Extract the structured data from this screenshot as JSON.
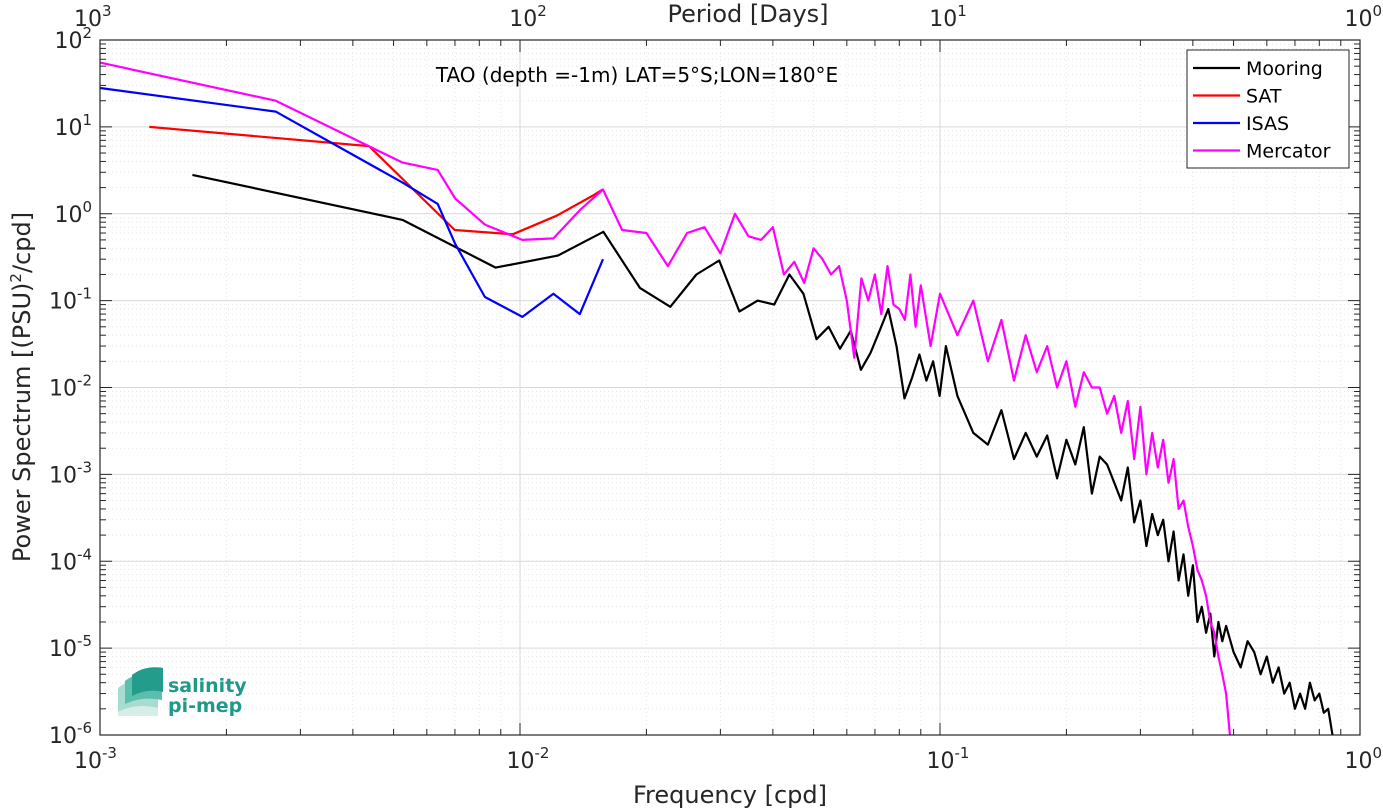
{
  "chart_data": {
    "type": "line",
    "title": "TAO (depth =-1m) LAT=5°S;LON=180°E",
    "xlabel": "Frequency [cpd]",
    "top_xlabel": "Period [Days]",
    "ylabel": "Power Spectrum [(PSU)^2/cpd]",
    "ylabel_parts": {
      "main": "Power Spectrum [(PSU)",
      "exp": "2",
      "tail": "/cpd]"
    },
    "x_scale": "log",
    "y_scale": "log",
    "xlim": [
      0.001,
      1
    ],
    "ylim": [
      1e-06,
      100
    ],
    "grid": true,
    "minor_grid": true,
    "legend_position": "top-right",
    "x_ticks": [
      {
        "base": "10",
        "exp": "-3"
      },
      {
        "base": "10",
        "exp": "-2"
      },
      {
        "base": "10",
        "exp": "-1"
      },
      {
        "base": "10",
        "exp": "0"
      }
    ],
    "top_ticks": [
      {
        "base": "10",
        "exp": "3"
      },
      {
        "base": "10",
        "exp": "2"
      },
      {
        "base": "10",
        "exp": "1"
      },
      {
        "base": "10",
        "exp": "0"
      }
    ],
    "y_ticks": [
      {
        "base": "10",
        "exp": "2"
      },
      {
        "base": "10",
        "exp": "1"
      },
      {
        "base": "10",
        "exp": "0"
      },
      {
        "base": "10",
        "exp": "-1"
      },
      {
        "base": "10",
        "exp": "-2"
      },
      {
        "base": "10",
        "exp": "-3"
      },
      {
        "base": "10",
        "exp": "-4"
      },
      {
        "base": "10",
        "exp": "-5"
      },
      {
        "base": "10",
        "exp": "-6"
      }
    ],
    "series": [
      {
        "name": "Mooring",
        "color": "#000000",
        "x": [
          0.00166,
          0.00525,
          0.00875,
          0.0123,
          0.0158,
          0.0193,
          0.0228,
          0.0263,
          0.0298,
          0.0333,
          0.0368,
          0.0403,
          0.0438,
          0.0473,
          0.0508,
          0.0543,
          0.0578,
          0.0613,
          0.0648,
          0.0683,
          0.0718,
          0.0753,
          0.0788,
          0.0823,
          0.0858,
          0.0893,
          0.0928,
          0.0963,
          0.0998,
          0.1033,
          0.11,
          0.12,
          0.13,
          0.14,
          0.15,
          0.16,
          0.17,
          0.18,
          0.19,
          0.2,
          0.21,
          0.22,
          0.23,
          0.24,
          0.25,
          0.26,
          0.27,
          0.28,
          0.29,
          0.3,
          0.31,
          0.32,
          0.33,
          0.34,
          0.35,
          0.36,
          0.37,
          0.38,
          0.39,
          0.4,
          0.41,
          0.42,
          0.43,
          0.44,
          0.45,
          0.46,
          0.47,
          0.48,
          0.5,
          0.52,
          0.54,
          0.56,
          0.58,
          0.6,
          0.62,
          0.64,
          0.66,
          0.68,
          0.7,
          0.72,
          0.74,
          0.76,
          0.78,
          0.8,
          0.82,
          0.84,
          0.86
        ],
        "y": [
          2.8,
          0.85,
          0.24,
          0.33,
          0.62,
          0.14,
          0.085,
          0.2,
          0.29,
          0.075,
          0.1,
          0.09,
          0.2,
          0.12,
          0.036,
          0.05,
          0.028,
          0.045,
          0.016,
          0.025,
          0.045,
          0.08,
          0.03,
          0.0075,
          0.013,
          0.024,
          0.012,
          0.02,
          0.008,
          0.03,
          0.008,
          0.003,
          0.0022,
          0.0055,
          0.0015,
          0.003,
          0.0016,
          0.0028,
          0.0009,
          0.0025,
          0.0013,
          0.0035,
          0.0006,
          0.0016,
          0.0013,
          0.0008,
          0.0005,
          0.0012,
          0.00028,
          0.0005,
          0.00015,
          0.00035,
          0.0002,
          0.0003,
          0.0001,
          0.00022,
          6e-05,
          0.00012,
          4e-05,
          9e-05,
          2e-05,
          3e-05,
          1.5e-05,
          2.5e-05,
          8e-06,
          2e-05,
          1.2e-05,
          1.8e-05,
          9e-06,
          6e-06,
          1.2e-05,
          9e-06,
          5e-06,
          8e-06,
          4e-06,
          6e-06,
          3e-06,
          4e-06,
          2e-06,
          3e-06,
          2e-06,
          4e-06,
          2.5e-06,
          3e-06,
          1.8e-06,
          2e-06,
          1e-06
        ]
      },
      {
        "name": "SAT",
        "color": "#ff0000",
        "x": [
          0.00131,
          0.00437,
          0.00699,
          0.00961,
          0.01223,
          0.01485,
          0.01573
        ],
        "y": [
          10,
          6,
          0.65,
          0.58,
          0.95,
          1.6,
          1.9
        ]
      },
      {
        "name": "ISAS",
        "color": "#0000ff",
        "x": [
          0.001,
          0.00262,
          0.00524,
          0.00637,
          0.00701,
          0.00825,
          0.01013,
          0.01201,
          0.01388,
          0.01576
        ],
        "y": [
          28,
          15,
          2.3,
          1.3,
          0.45,
          0.11,
          0.065,
          0.12,
          0.07,
          0.3
        ]
      },
      {
        "name": "Mercator",
        "color": "#ff00ff",
        "x": [
          0.001,
          0.00262,
          0.00524,
          0.00637,
          0.00701,
          0.00825,
          0.01013,
          0.01201,
          0.01388,
          0.01576,
          0.0175,
          0.02,
          0.0225,
          0.025,
          0.0275,
          0.03,
          0.0325,
          0.035,
          0.0375,
          0.04,
          0.0425,
          0.045,
          0.0475,
          0.05,
          0.0525,
          0.055,
          0.0575,
          0.06,
          0.0625,
          0.065,
          0.0675,
          0.07,
          0.0725,
          0.075,
          0.0775,
          0.08,
          0.0825,
          0.085,
          0.0875,
          0.09,
          0.095,
          0.1,
          0.11,
          0.12,
          0.13,
          0.14,
          0.15,
          0.16,
          0.17,
          0.18,
          0.19,
          0.2,
          0.21,
          0.22,
          0.23,
          0.24,
          0.25,
          0.26,
          0.27,
          0.28,
          0.29,
          0.3,
          0.31,
          0.32,
          0.33,
          0.34,
          0.35,
          0.36,
          0.37,
          0.38,
          0.39,
          0.4,
          0.41,
          0.42,
          0.43,
          0.44,
          0.45,
          0.46,
          0.47,
          0.48,
          0.49
        ],
        "y": [
          55,
          20,
          3.9,
          3.2,
          1.5,
          0.75,
          0.5,
          0.52,
          1.1,
          1.9,
          0.65,
          0.6,
          0.25,
          0.6,
          0.7,
          0.35,
          1.0,
          0.55,
          0.5,
          0.7,
          0.2,
          0.28,
          0.16,
          0.4,
          0.3,
          0.2,
          0.25,
          0.1,
          0.022,
          0.18,
          0.1,
          0.2,
          0.07,
          0.25,
          0.09,
          0.08,
          0.06,
          0.2,
          0.05,
          0.15,
          0.03,
          0.12,
          0.04,
          0.1,
          0.02,
          0.06,
          0.012,
          0.04,
          0.015,
          0.03,
          0.01,
          0.02,
          0.006,
          0.015,
          0.01,
          0.01,
          0.005,
          0.008,
          0.003,
          0.007,
          0.0015,
          0.006,
          0.001,
          0.003,
          0.0012,
          0.0025,
          0.0008,
          0.0015,
          0.0004,
          0.0005,
          0.00025,
          0.00015,
          8e-05,
          6e-05,
          4e-05,
          2e-05,
          1.5e-05,
          8e-06,
          5e-06,
          3e-06,
          1e-06
        ]
      }
    ]
  },
  "logo": {
    "line1": "salinity",
    "line2": "pi-mep"
  }
}
